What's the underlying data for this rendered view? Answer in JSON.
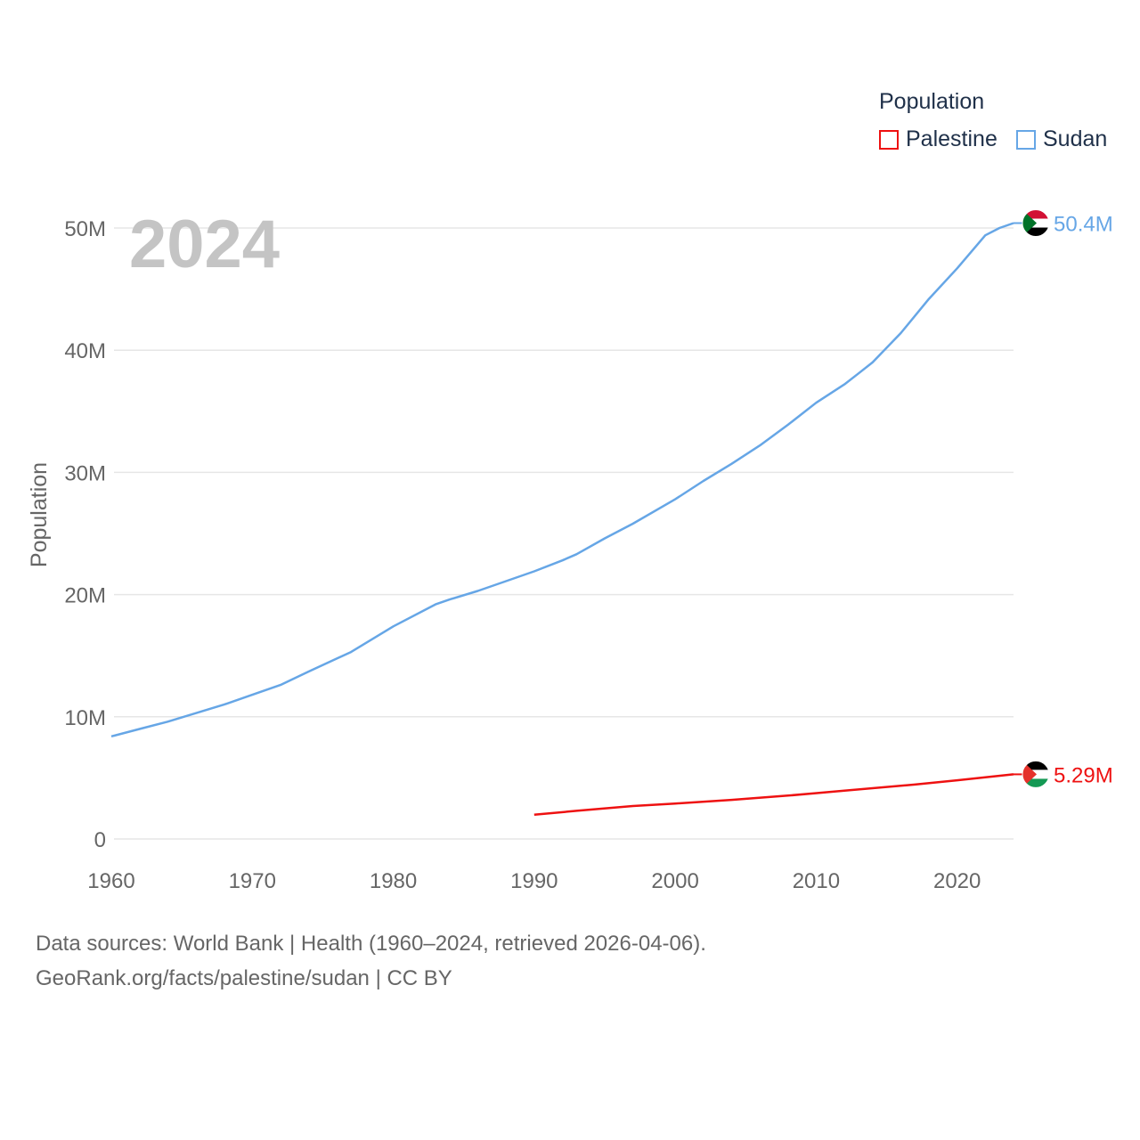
{
  "legend": {
    "title": "Population",
    "items": [
      {
        "label": "Palestine",
        "color": "#ee1111"
      },
      {
        "label": "Sudan",
        "color": "#66a6e6"
      }
    ]
  },
  "year_overlay": "2024",
  "source": {
    "line1": "Data sources: World Bank | Health (1960–2024, retrieved 2026-04-06).",
    "line2": "GeoRank.org/facts/palestine/sudan | CC BY"
  },
  "chart_data": {
    "type": "line",
    "title": "",
    "xlabel": "",
    "ylabel": "Population",
    "xlim": [
      1960,
      2024
    ],
    "ylim": [
      0,
      50000000
    ],
    "x_ticks": [
      1960,
      1970,
      1980,
      1990,
      2000,
      2010,
      2020
    ],
    "x_tick_labels": [
      "1960",
      "1970",
      "1980",
      "1990",
      "2000",
      "2010",
      "2020"
    ],
    "y_ticks": [
      0,
      10000000,
      20000000,
      30000000,
      40000000,
      50000000
    ],
    "y_tick_labels": [
      "0",
      "10M",
      "20M",
      "30M",
      "40M",
      "50M"
    ],
    "grid": true,
    "series": [
      {
        "name": "Sudan",
        "color": "#66a6e6",
        "end_label": "50.4M",
        "flag": "sudan-flag",
        "x": [
          1960,
          1962,
          1964,
          1966,
          1968,
          1970,
          1972,
          1974,
          1977,
          1980,
          1983,
          1984,
          1986,
          1988,
          1990,
          1992,
          1993,
          1995,
          1997,
          2000,
          2002,
          2004,
          2006,
          2008,
          2010,
          2012,
          2013,
          2014,
          2016,
          2018,
          2020,
          2022,
          2023,
          2024
        ],
        "y": [
          8400000,
          9000000,
          9600000,
          10300000,
          11000000,
          11800000,
          12600000,
          13700000,
          15300000,
          17400000,
          19200000,
          19600000,
          20300000,
          21100000,
          21900000,
          22800000,
          23300000,
          24600000,
          25800000,
          27800000,
          29300000,
          30700000,
          32200000,
          33900000,
          35700000,
          37200000,
          38100000,
          39000000,
          41400000,
          44200000,
          46700000,
          49400000,
          50000000,
          50400000
        ]
      },
      {
        "name": "Palestine",
        "color": "#ee1111",
        "end_label": "5.29M",
        "flag": "palestine-flag",
        "x": [
          1990,
          1993,
          1997,
          2000,
          2004,
          2008,
          2012,
          2017,
          2020,
          2024
        ],
        "y": [
          1980000,
          2300000,
          2700000,
          2900000,
          3200000,
          3550000,
          3950000,
          4450000,
          4800000,
          5290000
        ]
      }
    ]
  }
}
